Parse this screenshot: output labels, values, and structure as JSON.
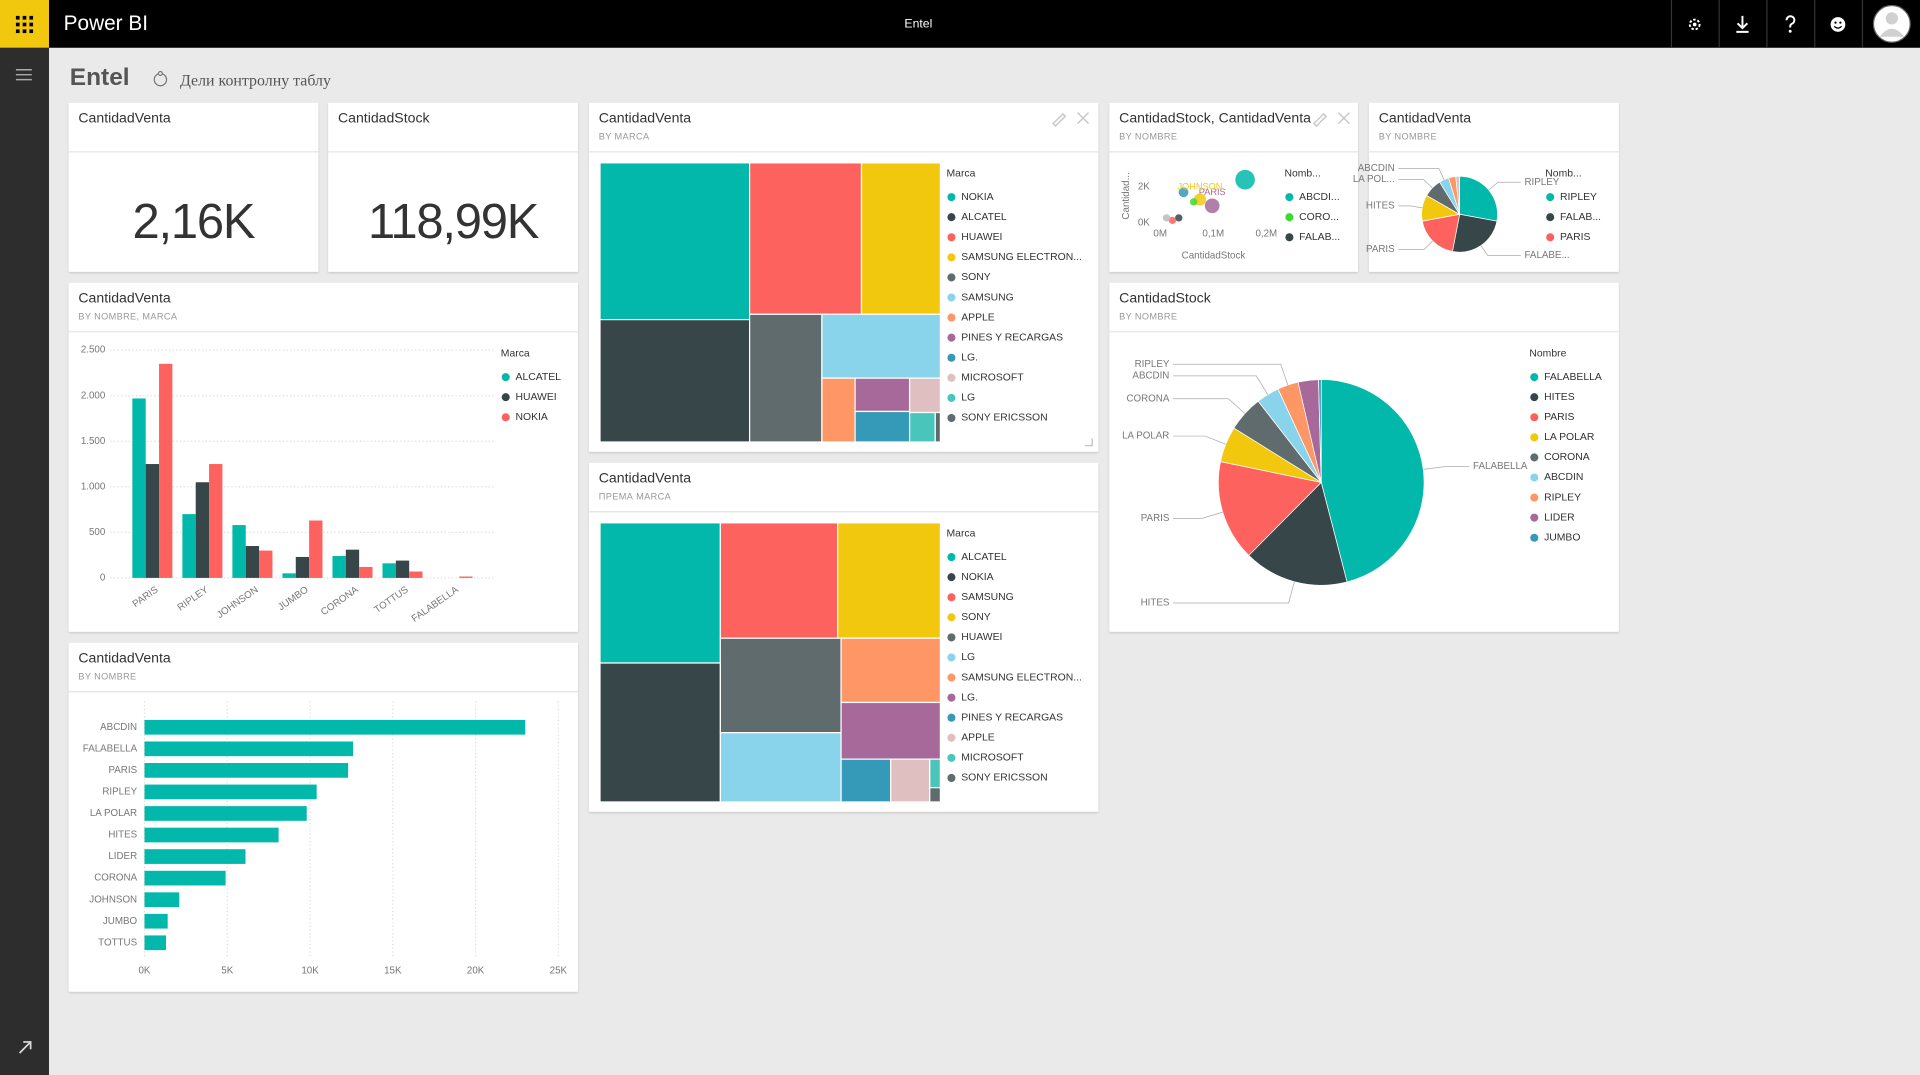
{
  "app": {
    "name": "Power BI",
    "report": "Entel"
  },
  "dashboard": {
    "title": "Entel",
    "share": "Дели контролну таблу"
  },
  "tiles": [
    {
      "type": "card",
      "title": "CantidadVenta",
      "value": "2,16K"
    },
    {
      "type": "card",
      "title": "CantidadStock",
      "value": "118,99K"
    },
    {
      "type": "column",
      "title": "CantidadVenta",
      "subtitle": "BY NOMBRE, MARCA",
      "legend_title": "Marca",
      "categories": [
        "PARIS",
        "RIPLEY",
        "JOHNSON",
        "JUMBO",
        "CORONA",
        "TOTTUS",
        "FALABELLA"
      ],
      "series": [
        {
          "name": "ALCATEL",
          "color": "#01B8AA",
          "values": [
            1970,
            700,
            580,
            50,
            240,
            160,
            null
          ]
        },
        {
          "name": "HUAWEI",
          "color": "#374649",
          "values": [
            1250,
            1050,
            350,
            230,
            310,
            190,
            null
          ]
        },
        {
          "name": "NOKIA",
          "color": "#FD625E",
          "values": [
            2350,
            1250,
            300,
            630,
            120,
            70,
            15
          ]
        }
      ],
      "ylim": [
        0,
        2500
      ],
      "yticks": [
        0,
        500,
        {
          "value": 1000,
          "label": "1.000"
        },
        {
          "value": 1500,
          "label": "1.500"
        },
        {
          "value": 2000,
          "label": "2.000"
        },
        {
          "value": 2500,
          "label": "2.500"
        }
      ],
      "grid": true
    },
    {
      "type": "hbar",
      "title": "CantidadVenta",
      "subtitle": "BY NOMBRE",
      "categories": [
        "ABCDIN",
        "FALABELLA",
        "PARIS",
        "RIPLEY",
        "LA POLAR",
        "HITES",
        "LIDER",
        "CORONA",
        "JOHNSON",
        "JUMBO",
        "TOTTUS"
      ],
      "values": [
        23000,
        12600,
        12300,
        10400,
        9800,
        8100,
        6100,
        4900,
        2100,
        1400,
        1300
      ],
      "color": "#01B8AA",
      "xlim": [
        0,
        25000
      ],
      "xticks": [
        {
          "value": 0,
          "label": "0K"
        },
        {
          "value": 5000,
          "label": "5K"
        },
        {
          "value": 10000,
          "label": "10K"
        },
        {
          "value": 15000,
          "label": "15K"
        },
        {
          "value": 20000,
          "label": "20K"
        },
        {
          "value": 25000,
          "label": "25K"
        }
      ],
      "grid": true
    },
    {
      "type": "treemap",
      "title": "CantidadVenta",
      "subtitle": "BY MARCA",
      "legend_title": "Marca",
      "categories": [
        "NOKIA",
        "ALCATEL",
        "HUAWEI",
        "SAMSUNG ELECTRON...",
        "SONY",
        "SAMSUNG",
        "APPLE",
        "PINES Y RECARGAS",
        "LG.",
        "MICROSOFT",
        "LG",
        "SONY ERICSSON"
      ],
      "values": [
        15500,
        12100,
        11200,
        7900,
        6100,
        5000,
        1400,
        1200,
        1100,
        700,
        500,
        100
      ],
      "colors": [
        "#01B8AA",
        "#374649",
        "#FD625E",
        "#F2C80F",
        "#5F6B6D",
        "#8AD4EB",
        "#FE9666",
        "#A66999",
        "#3599B8",
        "#DFBFBF",
        "#4AC5BB",
        "#5F6B6D"
      ]
    },
    {
      "type": "treemap",
      "title": "CantidadVenta",
      "subtitle": "ПРЕМА MARCA",
      "legend_title": "Marca",
      "categories": [
        "ALCATEL",
        "NOKIA",
        "SAMSUNG",
        "SONY",
        "HUAWEI",
        "LG",
        "SAMSUNG ELECTRON...",
        "LG.",
        "PINES Y RECARGAS",
        "APPLE",
        "MICROSOFT",
        "SONY ERICSSON"
      ],
      "values": [
        11100,
        11000,
        8900,
        7800,
        7500,
        5500,
        4200,
        3700,
        1400,
        1100,
        200,
        100
      ],
      "colors": [
        "#01B8AA",
        "#374649",
        "#FD625E",
        "#F2C80F",
        "#5F6B6D",
        "#8AD4EB",
        "#FE9666",
        "#A66999",
        "#3599B8",
        "#DFBFBF",
        "#4AC5BB",
        "#5F6B6D"
      ]
    },
    {
      "type": "scatter",
      "title": "CantidadStock, CantidadVenta",
      "subtitle": "BY NOMBRE",
      "x_label": "CantidadStock",
      "y_label": "Cantidad...",
      "legend_title": "Nomb...",
      "legend": [
        {
          "name": "ABCDI...",
          "color": "#01B8AA"
        },
        {
          "name": "CORO...",
          "color": "#3ADB2E"
        },
        {
          "name": "FALAB...",
          "color": "#374649"
        }
      ],
      "points": {
        "x": [
          160000,
          44000,
          98000,
          75000,
          63000,
          35000,
          23000,
          12000
        ],
        "y": [
          2400,
          1700,
          950,
          1300,
          1170,
          280,
          140,
          280
        ],
        "size": [
          8,
          4,
          6,
          5,
          3,
          3,
          3,
          3
        ],
        "colors": [
          "#01B8AA",
          "#3599B8",
          "#A66999",
          "#F2C80F",
          "#3ADB2E",
          "#374649",
          "#FD625E",
          "#BBBBBB"
        ],
        "labels": [
          null,
          null,
          "PARIS",
          "JOHNSON",
          null,
          null,
          null,
          null
        ]
      },
      "xlim": [
        -15000,
        225000
      ],
      "ylim": [
        -200,
        3200
      ],
      "xticks": [
        {
          "value": 0,
          "label": "0M"
        },
        {
          "value": 100000,
          "label": "0,1M"
        },
        {
          "value": 200000,
          "label": "0,2M"
        }
      ],
      "yticks": [
        {
          "value": 0,
          "label": "0K"
        },
        {
          "value": 2000,
          "label": "2K"
        }
      ]
    },
    {
      "type": "pie",
      "title": "CantidadVenta",
      "subtitle": "BY NOMBRE",
      "legend_title": "Nomb...",
      "legend": [
        {
          "name": "RIPLEY",
          "color": "#01B8AA"
        },
        {
          "name": "FALAB...",
          "color": "#374649"
        },
        {
          "name": "PARIS",
          "color": "#FD625E"
        }
      ],
      "labels": [
        "RIPLEY",
        "FALABE...",
        "PARIS",
        "HITES",
        "LA POL...",
        "ABCDIN",
        null,
        null
      ],
      "values": [
        600,
        540,
        410,
        240,
        170,
        90,
        65,
        35
      ],
      "colors": [
        "#01B8AA",
        "#374649",
        "#FD625E",
        "#F2C80F",
        "#5F6B6D",
        "#8AD4EB",
        "#FE9666",
        "#DFBFBF"
      ]
    },
    {
      "type": "pie",
      "title": "CantidadStock",
      "subtitle": "BY NOMBRE",
      "legend_title": "Nombre",
      "categories": [
        "FALABELLA",
        "HITES",
        "PARIS",
        "LA POLAR",
        "CORONA",
        "ABCDIN",
        "RIPLEY",
        "LIDER",
        "JUMBO"
      ],
      "data_labels": [
        true,
        true,
        true,
        true,
        true,
        true,
        true,
        false,
        false
      ],
      "values": [
        54700,
        19600,
        18800,
        6700,
        6700,
        4300,
        3900,
        3800,
        500
      ],
      "colors": [
        "#01B8AA",
        "#374649",
        "#FD625E",
        "#F2C80F",
        "#5F6B6D",
        "#8AD4EB",
        "#FE9666",
        "#A66999",
        "#3599B8"
      ]
    }
  ]
}
